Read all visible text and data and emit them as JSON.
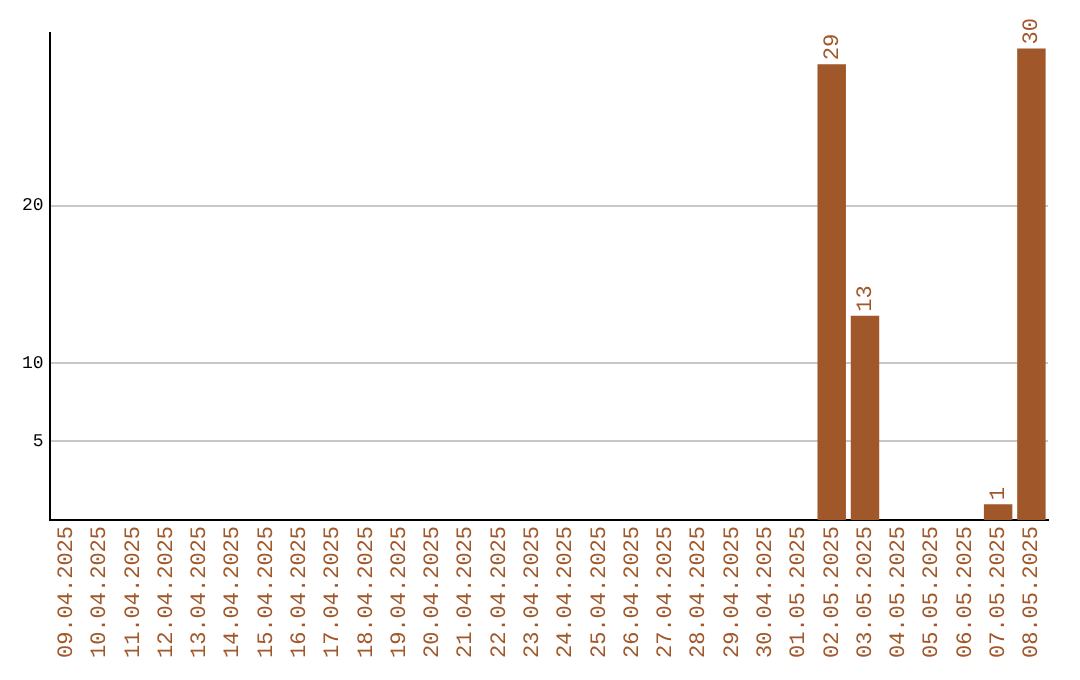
{
  "chart_data": {
    "type": "bar",
    "categories": [
      "09.04.2025",
      "10.04.2025",
      "11.04.2025",
      "12.04.2025",
      "13.04.2025",
      "14.04.2025",
      "15.04.2025",
      "16.04.2025",
      "17.04.2025",
      "18.04.2025",
      "19.04.2025",
      "20.04.2025",
      "21.04.2025",
      "22.04.2025",
      "23.04.2025",
      "24.04.2025",
      "25.04.2025",
      "26.04.2025",
      "27.04.2025",
      "28.04.2025",
      "29.04.2025",
      "30.04.2025",
      "01.05.2025",
      "02.05.2025",
      "03.05.2025",
      "04.05.2025",
      "05.05.2025",
      "06.05.2025",
      "07.05.2025",
      "08.05.2025"
    ],
    "values": [
      0,
      0,
      0,
      0,
      0,
      0,
      0,
      0,
      0,
      0,
      0,
      0,
      0,
      0,
      0,
      0,
      0,
      0,
      0,
      0,
      0,
      0,
      0,
      29,
      13,
      0,
      0,
      0,
      1,
      30
    ],
    "value_labels": [
      null,
      null,
      null,
      null,
      null,
      null,
      null,
      null,
      null,
      null,
      null,
      null,
      null,
      null,
      null,
      null,
      null,
      null,
      null,
      null,
      null,
      null,
      null,
      "29",
      "13",
      null,
      null,
      null,
      "1",
      "30"
    ],
    "color": "#a0572a",
    "ylim": [
      0,
      31
    ],
    "yticks": [
      5,
      10,
      20
    ],
    "grid": "y",
    "legend": false
  }
}
